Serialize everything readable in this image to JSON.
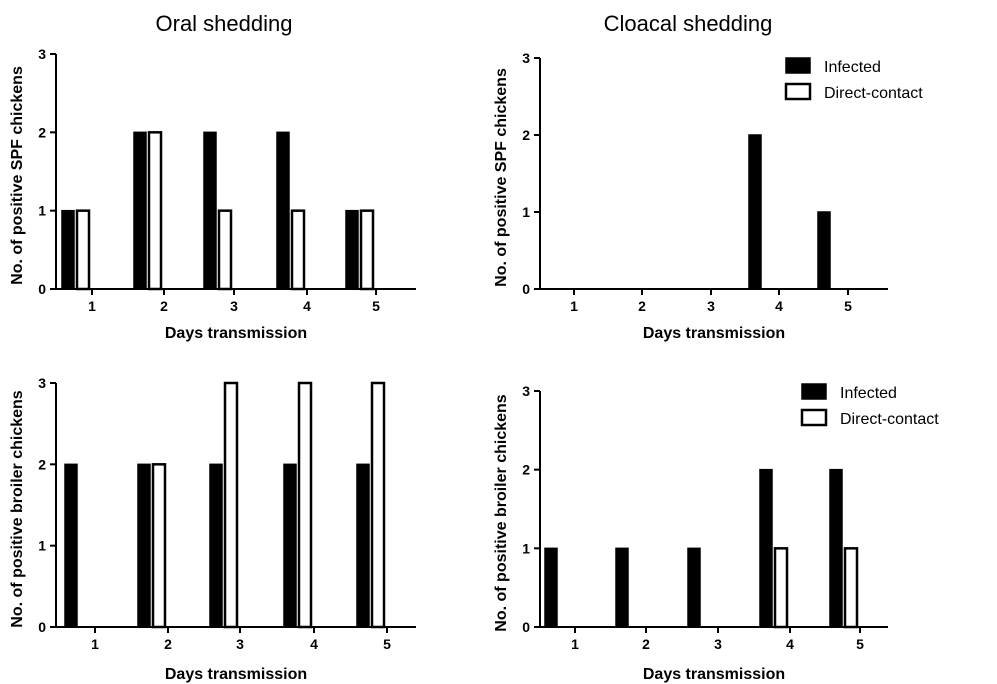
{
  "column_titles": [
    "Oral shedding",
    "Cloacal shedding"
  ],
  "chart_data": [
    {
      "type": "bar",
      "panel": "top-left",
      "categories": [
        "1",
        "2",
        "3",
        "4",
        "5"
      ],
      "series": [
        {
          "name": "Infected",
          "color": "#000000",
          "values": [
            1,
            2,
            2,
            2,
            1
          ]
        },
        {
          "name": "Direct-contact",
          "color": "#ffffff",
          "values": [
            1,
            2,
            1,
            1,
            1
          ]
        }
      ],
      "xlabel": "Days transmission",
      "ylabel": "No. of positive SPF chickens",
      "ylim": [
        0,
        3
      ],
      "yticks": [
        0,
        1,
        2,
        3
      ],
      "grid": false,
      "legend": null
    },
    {
      "type": "bar",
      "panel": "top-right",
      "categories": [
        "1",
        "2",
        "3",
        "4",
        "5"
      ],
      "series": [
        {
          "name": "Infected",
          "color": "#000000",
          "values": [
            0,
            0,
            0,
            2,
            1
          ]
        },
        {
          "name": "Direct-contact",
          "color": "#ffffff",
          "values": [
            0,
            0,
            0,
            0,
            0
          ]
        }
      ],
      "xlabel": "Days transmission",
      "ylabel": "No. of positive SPF chickens",
      "ylim": [
        0,
        3
      ],
      "yticks": [
        0,
        1,
        2,
        3
      ],
      "grid": false,
      "legend": "top-right"
    },
    {
      "type": "bar",
      "panel": "bottom-left",
      "categories": [
        "1",
        "2",
        "3",
        "4",
        "5"
      ],
      "series": [
        {
          "name": "Infected",
          "color": "#000000",
          "values": [
            2,
            2,
            2,
            2,
            2
          ]
        },
        {
          "name": "Direct-contact",
          "color": "#ffffff",
          "values": [
            0,
            2,
            3,
            3,
            3
          ]
        }
      ],
      "xlabel": "Days transmission",
      "ylabel": "No. of positive broiler chickens",
      "ylim": [
        0,
        3
      ],
      "yticks": [
        0,
        1,
        2,
        3
      ],
      "grid": false,
      "legend": null
    },
    {
      "type": "bar",
      "panel": "bottom-right",
      "categories": [
        "1",
        "2",
        "3",
        "4",
        "5"
      ],
      "series": [
        {
          "name": "Infected",
          "color": "#000000",
          "values": [
            1,
            1,
            1,
            2,
            2
          ]
        },
        {
          "name": "Direct-contact",
          "color": "#ffffff",
          "values": [
            0,
            0,
            0,
            1,
            1
          ]
        }
      ],
      "xlabel": "Days transmission",
      "ylabel": "No. of positive broiler chickens",
      "ylim": [
        0,
        3
      ],
      "yticks": [
        0,
        1,
        2,
        3
      ],
      "grid": false,
      "legend": "top-right"
    }
  ]
}
